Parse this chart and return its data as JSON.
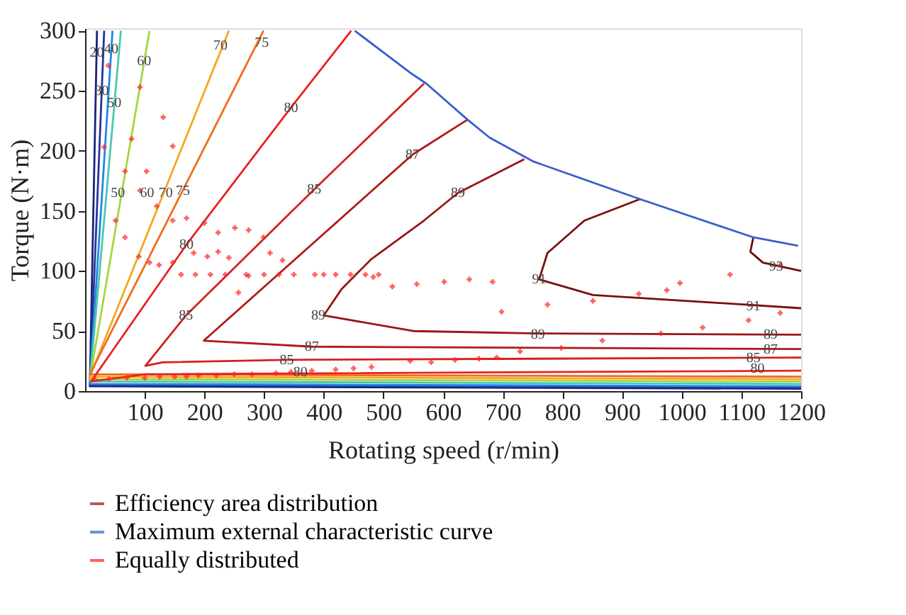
{
  "chart_data": {
    "type": "line",
    "xlabel": "Rotating speed (r/min)",
    "ylabel": "Torque (N·m)",
    "xlim": [
      0,
      1200
    ],
    "xticks": [
      100,
      200,
      300,
      400,
      500,
      600,
      700,
      800,
      900,
      1000,
      1100,
      1200
    ],
    "ylim": [
      0,
      302
    ],
    "yticks": [
      0,
      50,
      100,
      150,
      200,
      250,
      300
    ],
    "grid": false,
    "legend": "bottom",
    "series": [
      {
        "color": "#1a237e",
        "x": [
          1200,
          8,
          20
        ],
        "values": [
          2,
          4,
          300
        ]
      },
      {
        "color": "#283593",
        "x": [
          1200,
          8,
          32
        ],
        "values": [
          3,
          5,
          300
        ]
      },
      {
        "color": "#1e88e5",
        "x": [
          1200,
          8,
          46
        ],
        "values": [
          4,
          6,
          300
        ]
      },
      {
        "color": "#48c9b0",
        "x": [
          1200,
          8,
          60
        ],
        "values": [
          6,
          8,
          300
        ]
      },
      {
        "color": "#a5d63f",
        "x": [
          1200,
          8,
          108
        ],
        "values": [
          8,
          10,
          300
        ]
      },
      {
        "color": "#f5a623",
        "x": [
          1200,
          8,
          241
        ],
        "values": [
          10,
          12,
          300
        ]
      },
      {
        "color": "#f26b1d",
        "x": [
          1200,
          8,
          299
        ],
        "values": [
          12,
          14,
          300
        ]
      },
      {
        "color": "#e8231f",
        "x": [
          1200,
          100,
          10,
          170,
          345,
          446
        ],
        "values": [
          17,
          14,
          8,
          122,
          236,
          300
        ]
      },
      {
        "color": "#d42020",
        "x": [
          1200,
          338,
          130,
          101,
          169,
          384,
          568
        ],
        "values": [
          28,
          26,
          24,
          21,
          63,
          168,
          256
        ]
      },
      {
        "color": "#b01a1a",
        "x": [
          1200,
          380,
          199,
          549,
          641
        ],
        "values": [
          35,
          37,
          42,
          197,
          226
        ]
      },
      {
        "color": "#9b1515",
        "name": "Efficiency area distribution",
        "x": [
          1200,
          759,
          550,
          400,
          430,
          480,
          568,
          625,
          736
        ],
        "values": [
          47,
          48,
          50,
          63,
          85,
          110,
          142,
          165,
          193
        ]
      },
      {
        "color": "#7a1010",
        "x": [
          1200,
          1044,
          851,
          761,
          775,
          837,
          931
        ],
        "values": [
          69,
          74,
          80,
          93,
          115,
          142,
          160
        ]
      },
      {
        "color": "#6b0d0d",
        "x": [
          1120,
          1115,
          1136,
          1200
        ],
        "values": [
          128,
          116,
          107,
          100
        ]
      },
      {
        "color": "#3a5fcd",
        "name": "Maximum external characteristic curve",
        "x": [
          452,
          545,
          572,
          641,
          678,
          752,
          929,
          1120,
          1195
        ],
        "values": [
          300,
          265,
          256,
          226,
          211,
          191,
          160,
          128,
          121
        ]
      },
      {
        "type": "scatter",
        "color": "#ff2020",
        "name": "Equally distributed",
        "marker": "cross",
        "x": [
          16,
          40,
          70,
          100,
          125,
          150,
          170,
          190,
          220,
          250,
          280,
          320,
          345,
          380,
          420,
          450,
          480,
          545,
          580,
          620,
          660,
          690,
          729,
          798,
          867,
          965,
          1035,
          1112,
          1165,
          698,
          775,
          851,
          928,
          975,
          997,
          1081,
          1165,
          556,
          602,
          644,
          683,
          161,
          185,
          210,
          235,
          270,
          300,
          325,
          350,
          385,
          400,
          420,
          445,
          470,
          492,
          39,
          92,
          32,
          131,
          78,
          147,
          103,
          67,
          92,
          51,
          67,
          120,
          147,
          170,
          90,
          108,
          124,
          147,
          182,
          200,
          205,
          223,
          223,
          251,
          241,
          274,
          299,
          310,
          331,
          257,
          274,
          483,
          515
        ],
        "values": [
          10,
          10,
          11,
          11,
          12,
          12,
          12,
          13,
          13,
          14,
          14,
          15,
          16,
          17,
          18,
          19,
          20,
          25,
          24,
          26,
          27,
          28,
          33,
          36,
          42,
          48,
          53,
          59,
          65,
          66,
          72,
          75,
          81,
          84,
          90,
          97,
          105,
          89,
          91,
          93,
          91,
          97,
          97,
          97,
          97,
          97,
          97,
          97,
          97,
          97,
          97,
          97,
          97,
          97,
          97,
          271,
          253,
          203,
          228,
          210,
          204,
          183,
          183,
          167,
          142,
          128,
          154,
          142,
          144,
          112,
          107,
          105,
          107,
          115,
          140,
          112,
          132,
          116,
          136,
          111,
          134,
          128,
          115,
          109,
          82,
          96,
          95,
          87
        ]
      }
    ],
    "annotations": [
      {
        "text": "20",
        "x": 19.5,
        "y": 282
      },
      {
        "text": "30",
        "x": 28,
        "y": 250
      },
      {
        "text": "40",
        "x": 44,
        "y": 285
      },
      {
        "text": "50",
        "x": 49,
        "y": 240
      },
      {
        "text": "60",
        "x": 99,
        "y": 275
      },
      {
        "text": "70",
        "x": 227,
        "y": 288
      },
      {
        "text": "75",
        "x": 296,
        "y": 290
      },
      {
        "text": "50",
        "x": 55,
        "y": 165
      },
      {
        "text": "60",
        "x": 104,
        "y": 165
      },
      {
        "text": "70",
        "x": 135,
        "y": 165
      },
      {
        "text": "75",
        "x": 164,
        "y": 167
      },
      {
        "text": "80",
        "x": 345,
        "y": 236
      },
      {
        "text": "80",
        "x": 170,
        "y": 122
      },
      {
        "text": "85",
        "x": 384,
        "y": 168
      },
      {
        "text": "85",
        "x": 169,
        "y": 63
      },
      {
        "text": "87",
        "x": 549,
        "y": 197
      },
      {
        "text": "89",
        "x": 625,
        "y": 165
      },
      {
        "text": "89",
        "x": 391,
        "y": 63
      },
      {
        "text": "91",
        "x": 761,
        "y": 93
      },
      {
        "text": "85",
        "x": 338,
        "y": 26
      },
      {
        "text": "87",
        "x": 380,
        "y": 37
      },
      {
        "text": "80",
        "x": 361,
        "y": 16
      },
      {
        "text": "89",
        "x": 759,
        "y": 47
      },
      {
        "text": "91",
        "x": 1120,
        "y": 71
      },
      {
        "text": "89",
        "x": 1149,
        "y": 47
      },
      {
        "text": "87",
        "x": 1149,
        "y": 35
      },
      {
        "text": "85",
        "x": 1120,
        "y": 28
      },
      {
        "text": "80",
        "x": 1127,
        "y": 19
      },
      {
        "text": "93",
        "x": 1158,
        "y": 104
      }
    ]
  }
}
